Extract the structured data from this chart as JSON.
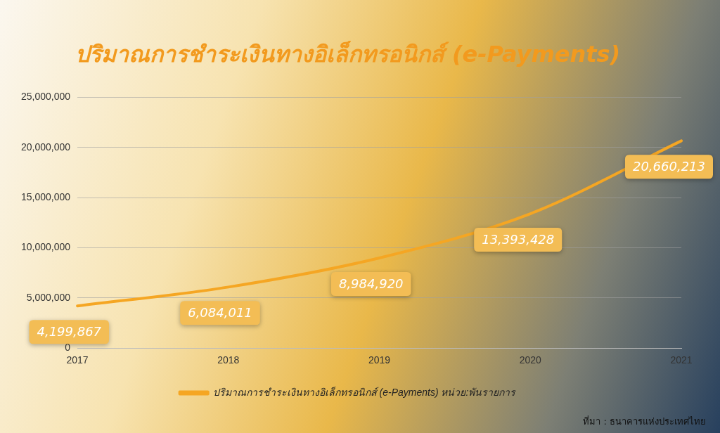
{
  "chart_data": {
    "type": "line",
    "title": "ปริมาณการชำระเงินทางอิเล็กทรอนิกส์ (e-Payments)",
    "categories": [
      "2017",
      "2018",
      "2019",
      "2020",
      "2021"
    ],
    "series": [
      {
        "name": "ปริมาณการชำระเงินทางอิเล็กทรอนิกส์ (e-Payments) หน่วย:พันรายการ",
        "color": "#f5a623",
        "values": [
          4199867,
          6084011,
          8984920,
          13393428,
          20660213
        ],
        "value_labels": [
          "4,199,867",
          "6,084,011",
          "8,984,920",
          "13,393,428",
          "20,660,213"
        ]
      }
    ],
    "ylim": [
      0,
      25000000
    ],
    "yticks": [
      {
        "value": 0,
        "label": "0"
      },
      {
        "value": 5000000,
        "label": "5,000,000"
      },
      {
        "value": 10000000,
        "label": "10,000,000"
      },
      {
        "value": 15000000,
        "label": "15,000,000"
      },
      {
        "value": 20000000,
        "label": "20,000,000"
      },
      {
        "value": 25000000,
        "label": "25,000,000"
      }
    ],
    "grid": "y",
    "legend": "bottom",
    "marker": "none",
    "line_style": "solid",
    "annotations": [
      "ที่มา : ธนาคารแห่งประเทศไทย"
    ]
  }
}
